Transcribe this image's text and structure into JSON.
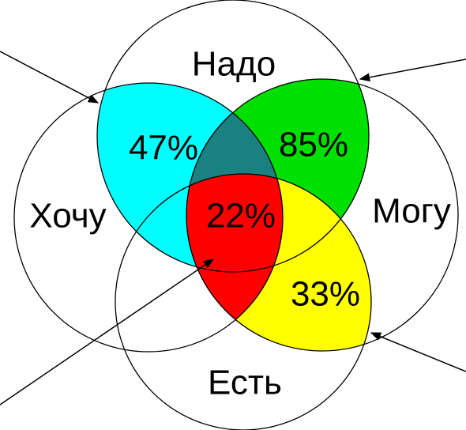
{
  "circles": [
    {
      "label": "Надо"
    },
    {
      "label": "Хочу"
    },
    {
      "label": "Могу"
    },
    {
      "label": "Есть"
    }
  ],
  "regions": [
    {
      "label": "47%"
    },
    {
      "label": "85%"
    },
    {
      "label": "22%"
    },
    {
      "label": "33%"
    }
  ]
}
